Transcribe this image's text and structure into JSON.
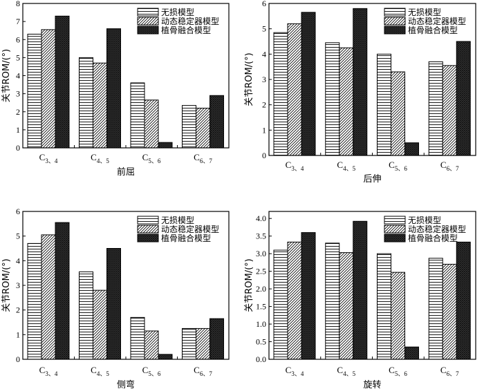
{
  "chart_data": [
    {
      "type": "bar",
      "xlabel": "前屈",
      "ylabel": "关节ROM/(°)",
      "categories": [
        "C3、4",
        "C4、5",
        "C5、6",
        "C6、7"
      ],
      "ylim": [
        0,
        8
      ],
      "yticks": [
        0,
        1,
        2,
        3,
        4,
        5,
        6,
        7,
        8
      ],
      "tick_decimals": 0,
      "legend_position": "top-right",
      "series": [
        {
          "name": "无损模型",
          "values": [
            6.3,
            5.0,
            3.6,
            2.35
          ]
        },
        {
          "name": "动态稳定器模型",
          "values": [
            6.55,
            4.7,
            2.65,
            2.2
          ]
        },
        {
          "name": "植骨融合模型",
          "values": [
            7.3,
            6.6,
            0.3,
            2.9
          ]
        }
      ]
    },
    {
      "type": "bar",
      "xlabel": "后伸",
      "ylabel": "关节ROM/(°)",
      "categories": [
        "C3、4",
        "C4、5",
        "C5、6",
        "C6、7"
      ],
      "ylim": [
        0,
        6
      ],
      "yticks": [
        0,
        1,
        2,
        3,
        4,
        5,
        6
      ],
      "tick_decimals": 0,
      "legend_position": "top-right",
      "series": [
        {
          "name": "无损模型",
          "values": [
            4.85,
            4.45,
            4.0,
            3.7
          ]
        },
        {
          "name": "动态稳定器模型",
          "values": [
            5.2,
            4.25,
            3.3,
            3.55
          ]
        },
        {
          "name": "植骨融合模型",
          "values": [
            5.65,
            5.8,
            0.5,
            4.5
          ]
        }
      ]
    },
    {
      "type": "bar",
      "xlabel": "侧弯",
      "ylabel": "关节ROM/(°)",
      "categories": [
        "C3、4",
        "C4、5",
        "C5、6",
        "C6、7"
      ],
      "ylim": [
        0,
        6
      ],
      "yticks": [
        0,
        1,
        2,
        3,
        4,
        5,
        6
      ],
      "tick_decimals": 0,
      "legend_position": "top-right",
      "series": [
        {
          "name": "无损模型",
          "values": [
            4.7,
            3.55,
            1.7,
            1.25
          ]
        },
        {
          "name": "动态稳定器模型",
          "values": [
            5.05,
            2.8,
            1.15,
            1.25
          ]
        },
        {
          "name": "植骨融合模型",
          "values": [
            5.55,
            4.5,
            0.2,
            1.65
          ]
        }
      ]
    },
    {
      "type": "bar",
      "xlabel": "旋转",
      "ylabel": "关节ROM/(°)",
      "categories": [
        "C3、4",
        "C4、5",
        "C5、6",
        "C6、7"
      ],
      "ylim": [
        0,
        4.2
      ],
      "yticks": [
        0,
        0.5,
        1,
        1.5,
        2,
        2.5,
        3,
        3.5,
        4
      ],
      "tick_decimals": 1,
      "legend_position": "top-right",
      "series": [
        {
          "name": "无损模型",
          "values": [
            3.1,
            3.3,
            3.0,
            2.87
          ]
        },
        {
          "name": "动态稳定器模型",
          "values": [
            3.33,
            3.03,
            2.47,
            2.7
          ]
        },
        {
          "name": "植骨融合模型",
          "values": [
            3.6,
            3.92,
            0.35,
            3.33
          ]
        }
      ]
    }
  ]
}
